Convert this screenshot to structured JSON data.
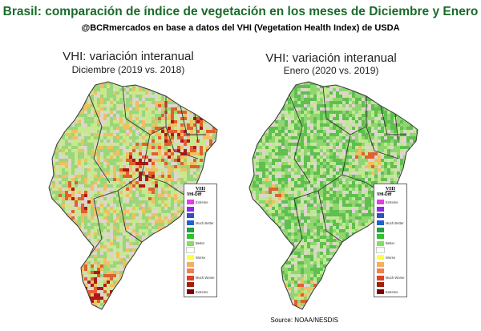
{
  "header": {
    "title": "Brasil: comparación de índice de vegetación en los meses de Diciembre y Enero",
    "subtitle": "@BCRmercados en base a datos del VHI (Vegetation Health Index) de USDA"
  },
  "panels": [
    {
      "title": "VHI: variación interanual",
      "period": "Diciembre (2019 vs. 2018)"
    },
    {
      "title": "VHI: variación interanual",
      "period": "Enero (2020 vs. 2019)"
    }
  ],
  "legend": {
    "title": "VHI",
    "subtitle": "VHI-Diff",
    "items": [
      {
        "label": "Extreme",
        "color": "#e040e0"
      },
      {
        "label": "",
        "color": "#8a2be2"
      },
      {
        "label": "",
        "color": "#3050c0"
      },
      {
        "label": "Much Better",
        "color": "#2060d0"
      },
      {
        "label": "",
        "color": "#20a040"
      },
      {
        "label": "",
        "color": "#30c030"
      },
      {
        "label": "Better",
        "color": "#80e060"
      },
      {
        "label": "",
        "color": "#ffffff"
      },
      {
        "label": "Worse",
        "color": "#ffff40"
      },
      {
        "label": "",
        "color": "#f0b060"
      },
      {
        "label": "",
        "color": "#f08050"
      },
      {
        "label": "Much Worse",
        "color": "#e04020"
      },
      {
        "label": "",
        "color": "#a02010"
      },
      {
        "label": "Extreme",
        "color": "#800000"
      }
    ]
  },
  "footer": {
    "source": "Source: NOAA/NESDIS"
  },
  "colors": {
    "title": "#1a6b2a",
    "land_background": "#dcd6cc",
    "ocean": "#ffffff",
    "borders": "#333333"
  }
}
